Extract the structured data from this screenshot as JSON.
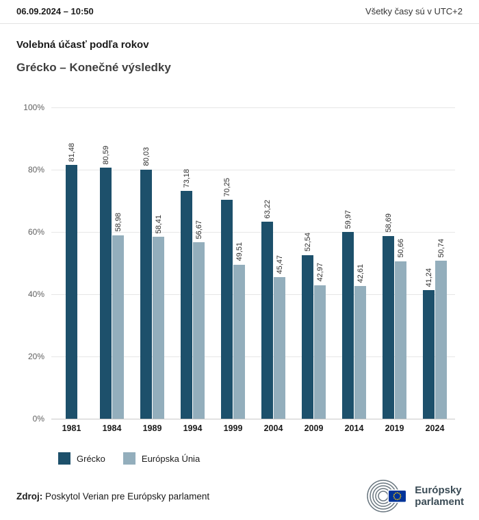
{
  "header": {
    "datetime": "06.09.2024 – 10:50",
    "timezone": "Všetky časy sú v UTC+2"
  },
  "titles": {
    "title": "Volebná účasť podľa rokov",
    "subtitle": "Grécko – Konečné výsledky"
  },
  "chart_data": {
    "type": "bar",
    "title": "Volebná účasť podľa rokov",
    "subtitle": "Grécko – Konečné výsledky",
    "categories": [
      "1981",
      "1984",
      "1989",
      "1994",
      "1999",
      "2004",
      "2009",
      "2014",
      "2019",
      "2024"
    ],
    "series": [
      {
        "name": "Grécko",
        "color": "#1d506b",
        "values": [
          81.48,
          80.59,
          80.03,
          73.18,
          70.25,
          63.22,
          52.54,
          59.97,
          58.69,
          41.24
        ],
        "labels": [
          "81,48",
          "80,59",
          "80,03",
          "73,18",
          "70,25",
          "63,22",
          "52,54",
          "59,97",
          "58,69",
          "41,24"
        ]
      },
      {
        "name": "Európska Únia",
        "color": "#93aebc",
        "values": [
          null,
          58.98,
          58.41,
          56.67,
          49.51,
          45.47,
          42.97,
          42.61,
          50.66,
          50.74
        ],
        "labels": [
          null,
          "58,98",
          "58,41",
          "56,67",
          "49,51",
          "45,47",
          "42,97",
          "42,61",
          "50,66",
          "50,74"
        ]
      }
    ],
    "ylim": [
      0,
      100
    ],
    "yticks": [
      100,
      80,
      60,
      40,
      20,
      0
    ],
    "ytick_suffix": "%",
    "grid": true,
    "legend_position": "bottom"
  },
  "legend": {
    "items": [
      {
        "label": "Grécko",
        "color": "#1d506b"
      },
      {
        "label": "Európska Únia",
        "color": "#93aebc"
      }
    ]
  },
  "footer": {
    "source_label": "Zdroj:",
    "source_text": "Poskytol Verian pre Európsky parlament",
    "logo": {
      "line1": "Európsky",
      "line2": "parlament"
    }
  }
}
